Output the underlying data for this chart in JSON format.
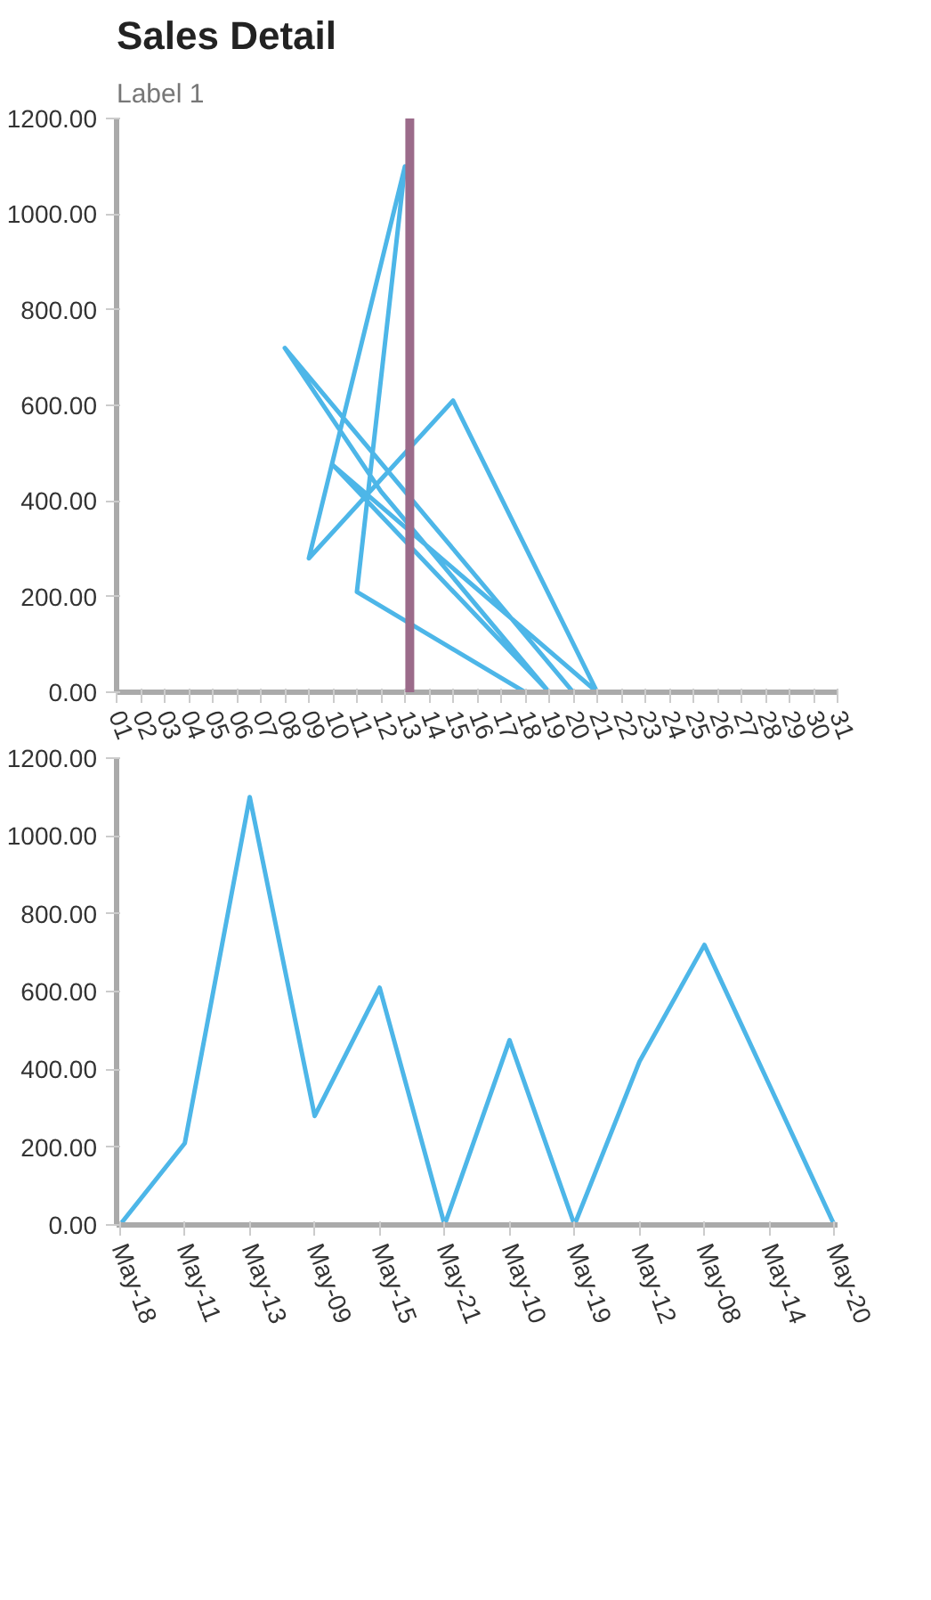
{
  "chart_data": [
    {
      "type": "line",
      "title": "Sales Detail",
      "subtitle": "Label 1",
      "x": [
        18,
        11,
        13,
        9,
        15,
        21,
        10,
        19,
        12,
        8,
        14,
        20
      ],
      "series": [
        {
          "color": "#4db6e8",
          "values": [
            0,
            210,
            1100,
            280,
            610,
            0,
            475,
            0,
            420,
            720,
            360,
            0
          ]
        }
      ],
      "xlim": [
        1,
        31
      ],
      "xticks": [
        {
          "value": 1,
          "label": "01"
        },
        {
          "value": 2,
          "label": "02"
        },
        {
          "value": 3,
          "label": "03"
        },
        {
          "value": 4,
          "label": "04"
        },
        {
          "value": 5,
          "label": "05"
        },
        {
          "value": 6,
          "label": "06"
        },
        {
          "value": 7,
          "label": "07"
        },
        {
          "value": 8,
          "label": "08"
        },
        {
          "value": 9,
          "label": "09"
        },
        10,
        11,
        12,
        13,
        14,
        15,
        16,
        17,
        18,
        19,
        20,
        21,
        22,
        23,
        24,
        25,
        26,
        27,
        28,
        29,
        30,
        31
      ],
      "ylim": [
        0,
        1200
      ],
      "yticks": [
        {
          "value": 0,
          "label": "0.00"
        },
        {
          "value": 200,
          "label": "200.00"
        },
        {
          "value": 400,
          "label": "400.00"
        },
        {
          "value": 600,
          "label": "600.00"
        },
        {
          "value": 800,
          "label": "800.00"
        },
        {
          "value": 1000,
          "label": "1000.00"
        },
        {
          "value": 1200,
          "label": "1200.00"
        }
      ],
      "ref_lines": [
        {
          "axis": "x",
          "value": 13.2,
          "color": "#9b6b8a"
        }
      ]
    },
    {
      "type": "line",
      "categories": [
        "May-18",
        "May-11",
        "May-13",
        "May-09",
        "May-15",
        "May-21",
        "May-10",
        "May-19",
        "May-12",
        "May-08",
        "May-14",
        "May-20"
      ],
      "series": [
        {
          "color": "#4db6e8",
          "values": [
            0,
            210,
            1100,
            280,
            610,
            0,
            475,
            0,
            420,
            720,
            360,
            0
          ]
        }
      ],
      "ylim": [
        0,
        1200
      ],
      "yticks": [
        {
          "value": 0,
          "label": "0.00"
        },
        {
          "value": 200,
          "label": "200.00"
        },
        {
          "value": 400,
          "label": "400.00"
        },
        {
          "value": 600,
          "label": "600.00"
        },
        {
          "value": 800,
          "label": "800.00"
        },
        {
          "value": 1000,
          "label": "1000.00"
        },
        {
          "value": 1200,
          "label": "1200.00"
        }
      ]
    }
  ]
}
